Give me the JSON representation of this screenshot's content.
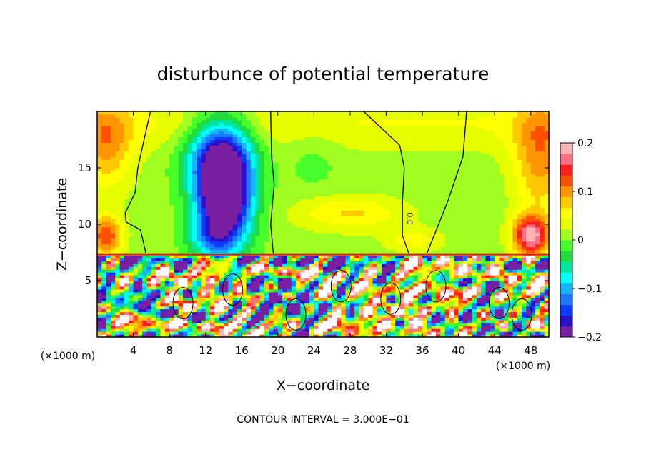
{
  "chart_data": {
    "type": "heatmap",
    "title": "disturbunce of potential temperature",
    "xlabel": "X−coordinate",
    "ylabel": "Z−coordinate",
    "x_unit": "(×1000 m)",
    "y_unit": "(×1000 m)",
    "xlim": [
      0,
      50
    ],
    "ylim": [
      0,
      20
    ],
    "x_ticks": [
      4,
      8,
      12,
      16,
      20,
      24,
      28,
      32,
      36,
      40,
      44,
      48
    ],
    "y_ticks": [
      5,
      10,
      15
    ],
    "colorbar": {
      "range": [
        -0.2,
        0.2
      ],
      "ticks": [
        {
          "value": 0.2,
          "label": "0.2"
        },
        {
          "value": 0.1,
          "label": "0.1"
        },
        {
          "value": 0,
          "label": "0"
        },
        {
          "value": -0.1,
          "label": "−0.1"
        },
        {
          "value": -0.2,
          "label": "−0.2"
        }
      ],
      "colors": [
        "#7a1fa2",
        "#2a10c8",
        "#0a3cff",
        "#1e78ff",
        "#14b4ff",
        "#00ffff",
        "#00e6a0",
        "#20dc3c",
        "#46ff2a",
        "#a0ff20",
        "#e6ff00",
        "#ffff00",
        "#ffc800",
        "#ff9600",
        "#ff5000",
        "#ff1e1e",
        "#ff6e82",
        "#ffb4b4"
      ]
    },
    "footnote": "CONTOUR INTERVAL = 3.000E−01",
    "contour_label": "0.0",
    "interface_height": 7.3
  }
}
